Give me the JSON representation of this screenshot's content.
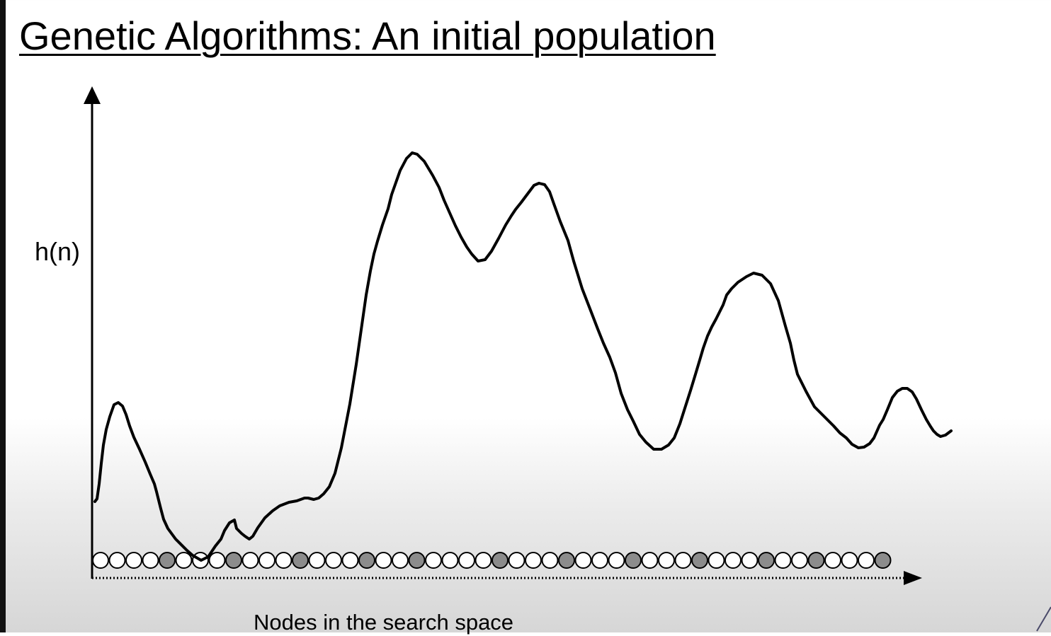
{
  "slide": {
    "title": "Genetic Algorithms: An initial population"
  },
  "chart_data": {
    "type": "line",
    "ylabel": "h(n)",
    "xlabel": "Nodes in the search space",
    "curve": {
      "x": [
        0,
        3,
        6,
        9,
        12,
        16,
        21,
        27,
        33,
        39,
        44,
        49,
        55,
        63,
        71,
        78,
        84,
        87,
        93,
        97,
        103,
        114,
        130,
        138,
        150,
        160,
        170,
        178,
        183,
        190,
        197,
        200,
        207,
        212,
        218,
        223,
        230,
        240,
        251,
        261,
        274,
        285,
        296,
        301,
        309,
        316,
        323,
        331,
        339,
        348,
        360,
        369,
        377,
        383,
        389,
        394,
        399,
        406,
        414,
        419,
        425,
        431,
        440,
        448,
        455,
        465,
        477,
        486,
        493,
        501,
        509,
        517,
        525,
        532,
        541,
        551,
        560,
        570,
        580,
        588,
        594,
        602,
        608,
        614,
        620,
        627,
        635,
        642,
        648,
        657,
        668,
        676,
        688,
        700,
        710,
        718,
        727,
        735,
        743,
        752,
        760,
        769,
        778,
        789,
        800,
        810,
        818,
        826,
        833,
        841,
        848,
        854,
        859,
        865,
        871,
        877,
        882,
        887,
        892,
        899,
        908,
        920,
        930,
        942,
        954,
        965,
        975,
        982,
        987,
        992,
        999,
        1004,
        1010,
        1016,
        1024,
        1033,
        1043,
        1052,
        1061,
        1069,
        1078,
        1086,
        1094,
        1100,
        1104,
        1108,
        1113,
        1119,
        1126,
        1133,
        1140,
        1147,
        1154,
        1160,
        1167,
        1174,
        1180,
        1184,
        1189,
        1194,
        1201,
        1209
      ],
      "y": [
        106,
        110,
        131,
        160,
        186,
        208,
        226,
        243,
        246,
        241,
        229,
        213,
        197,
        180,
        162,
        145,
        131,
        120,
        96,
        81,
        68,
        53,
        37,
        30,
        23,
        28,
        43,
        53,
        65,
        76,
        80,
        68,
        61,
        57,
        53,
        57,
        69,
        83,
        93,
        100,
        105,
        107,
        111,
        111,
        109,
        111,
        117,
        127,
        146,
        182,
        244,
        300,
        356,
        398,
        432,
        456,
        474,
        497,
        520,
        540,
        557,
        574,
        591,
        599,
        597,
        587,
        567,
        550,
        532,
        514,
        496,
        480,
        466,
        456,
        446,
        448,
        460,
        478,
        497,
        510,
        519,
        529,
        537,
        545,
        553,
        556,
        554,
        544,
        527,
        502,
        475,
        446,
        407,
        376,
        350,
        330,
        310,
        288,
        259,
        236,
        220,
        201,
        190,
        180,
        180,
        186,
        196,
        216,
        238,
        263,
        286,
        306,
        323,
        340,
        353,
        364,
        374,
        384,
        398,
        407,
        416,
        424,
        429,
        426,
        414,
        390,
        354,
        330,
        306,
        286,
        272,
        262,
        251,
        240,
        232,
        223,
        213,
        203,
        196,
        187,
        182,
        183,
        188,
        196,
        205,
        214,
        222,
        236,
        253,
        262,
        266,
        266,
        261,
        251,
        236,
        222,
        212,
        206,
        201,
        198,
        200,
        206
      ]
    },
    "population": {
      "count": 48,
      "highlighted": [
        4,
        8,
        12,
        16,
        19,
        24,
        28,
        32,
        36,
        40,
        43,
        47
      ]
    },
    "colors": {
      "node_fill": "#ffffff",
      "node_selected_fill": "#8c8c8c",
      "curve": "#000000"
    }
  }
}
